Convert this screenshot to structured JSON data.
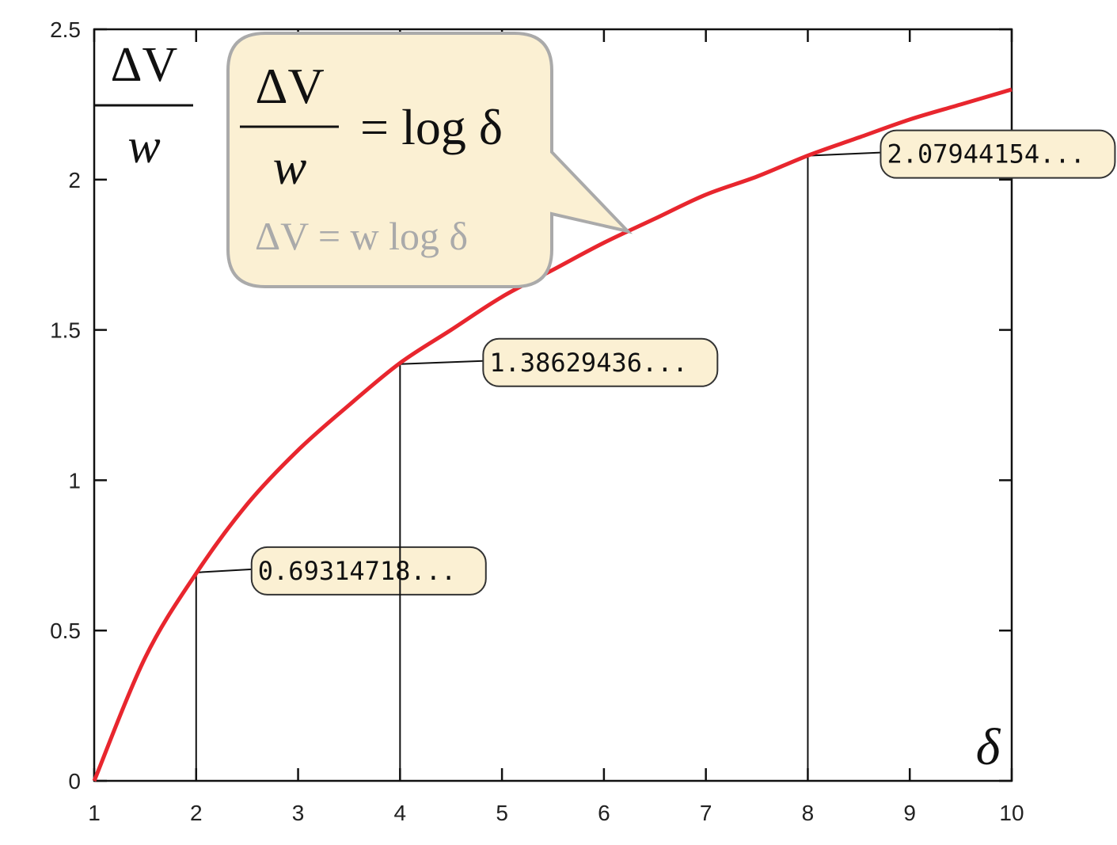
{
  "chart_data": {
    "type": "line",
    "ylabel": {
      "numerator": "ΔV",
      "denominator": "w"
    },
    "xlabel": "δ",
    "annotation": {
      "numerator": "ΔV",
      "denominator": "w",
      "rhs": "= log δ",
      "subtext": "ΔV = w log δ"
    },
    "x": [
      1,
      1.5,
      2,
      2.5,
      3,
      3.5,
      4,
      4.5,
      5,
      5.5,
      6,
      6.5,
      7,
      7.5,
      8,
      8.5,
      9,
      9.5,
      10
    ],
    "series": [
      {
        "color": "#e8262e",
        "values": [
          0,
          0.41,
          0.69,
          0.92,
          1.1,
          1.25,
          1.39,
          1.5,
          1.61,
          1.7,
          1.79,
          1.87,
          1.95,
          2.01,
          2.08,
          2.14,
          2.2,
          2.25,
          2.3
        ]
      }
    ],
    "markers": {
      "x": [
        2,
        4,
        8
      ],
      "values": [
        0.69314718,
        1.38629436,
        2.07944154
      ],
      "value_labels": [
        "0.69314718...",
        "1.38629436...",
        "2.07944154..."
      ]
    },
    "xlim": [
      1,
      10
    ],
    "ylim": [
      0,
      2.5
    ],
    "xticks": [
      1,
      2,
      3,
      4,
      5,
      6,
      7,
      8,
      9,
      10
    ],
    "yticks": [
      0,
      0.5,
      1,
      1.5,
      2,
      2.5
    ]
  }
}
